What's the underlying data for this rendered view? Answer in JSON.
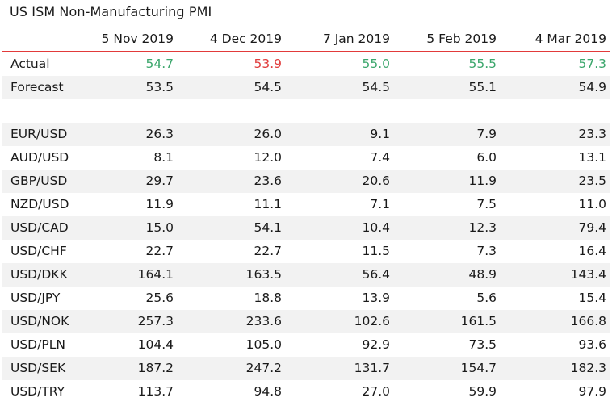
{
  "title": "US ISM Non-Manufacturing PMI",
  "colors": {
    "positive": "#3aa66b",
    "negative": "#e03c3c",
    "header_rule": "#e23a3a",
    "stripe": "#f2f2f2"
  },
  "chart_data": {
    "type": "table",
    "title": "US ISM Non-Manufacturing PMI",
    "columns": [
      "",
      "5 Nov 2019",
      "4 Dec 2019",
      "7 Jan 2019",
      "5 Feb 2019",
      "4 Mar 2019"
    ],
    "rows": [
      {
        "label": "Actual",
        "values": [
          "54.7",
          "53.9",
          "55.0",
          "55.5",
          "57.3"
        ],
        "tones": [
          "pos",
          "neg",
          "pos",
          "pos",
          "pos"
        ]
      },
      {
        "label": "Forecast",
        "values": [
          "53.5",
          "54.5",
          "54.5",
          "55.1",
          "54.9"
        ]
      },
      {
        "label": "",
        "values": [
          "",
          "",
          "",
          "",
          ""
        ]
      },
      {
        "label": "EUR/USD",
        "values": [
          "26.3",
          "26.0",
          "9.1",
          "7.9",
          "23.3"
        ]
      },
      {
        "label": "AUD/USD",
        "values": [
          "8.1",
          "12.0",
          "7.4",
          "6.0",
          "13.1"
        ]
      },
      {
        "label": "GBP/USD",
        "values": [
          "29.7",
          "23.6",
          "20.6",
          "11.9",
          "23.5"
        ]
      },
      {
        "label": "NZD/USD",
        "values": [
          "11.9",
          "11.1",
          "7.1",
          "7.5",
          "11.0"
        ]
      },
      {
        "label": "USD/CAD",
        "values": [
          "15.0",
          "54.1",
          "10.4",
          "12.3",
          "79.4"
        ]
      },
      {
        "label": "USD/CHF",
        "values": [
          "22.7",
          "22.7",
          "11.5",
          "7.3",
          "16.4"
        ]
      },
      {
        "label": "USD/DKK",
        "values": [
          "164.1",
          "163.5",
          "56.4",
          "48.9",
          "143.4"
        ]
      },
      {
        "label": "USD/JPY",
        "values": [
          "25.6",
          "18.8",
          "13.9",
          "5.6",
          "15.4"
        ]
      },
      {
        "label": "USD/NOK",
        "values": [
          "257.3",
          "233.6",
          "102.6",
          "161.5",
          "166.8"
        ]
      },
      {
        "label": "USD/PLN",
        "values": [
          "104.4",
          "105.0",
          "92.9",
          "73.5",
          "93.6"
        ]
      },
      {
        "label": "USD/SEK",
        "values": [
          "187.2",
          "247.2",
          "131.7",
          "154.7",
          "182.3"
        ]
      },
      {
        "label": "USD/TRY",
        "values": [
          "113.7",
          "94.8",
          "27.0",
          "59.9",
          "97.9"
        ]
      }
    ]
  }
}
